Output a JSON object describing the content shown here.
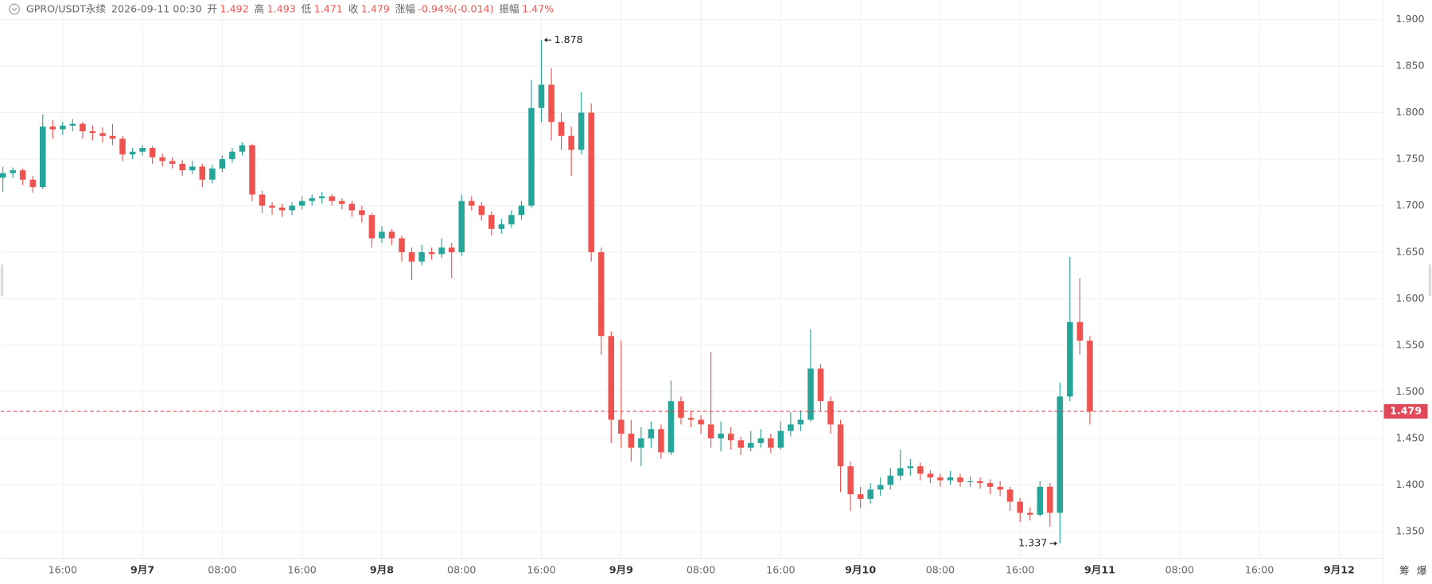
{
  "header": {
    "symbol": "GPRO/USDT永续",
    "time": "2026-09-11 00:30",
    "fields": [
      {
        "label": "开",
        "value": "1.492"
      },
      {
        "label": "高",
        "value": "1.493"
      },
      {
        "label": "低",
        "value": "1.471"
      },
      {
        "label": "收",
        "value": "1.479"
      },
      {
        "label": "涨幅",
        "value": "-0.94%(-0.014)"
      },
      {
        "label": "振幅",
        "value": "1.47%"
      }
    ]
  },
  "tools": [
    "筹",
    "爆"
  ],
  "chart_data": {
    "type": "candlestick",
    "up_color": "#26a69a",
    "down_color": "#ef5350",
    "last_price_color": "#e04a58",
    "grid": true,
    "xlim": [
      9.78,
      148.39
    ],
    "xticks": [
      {
        "value": 16,
        "label": "16:00"
      },
      {
        "value": 24,
        "label": "9月7"
      },
      {
        "value": 32,
        "label": "08:00"
      },
      {
        "value": 40,
        "label": "16:00"
      },
      {
        "value": 48,
        "label": "9月8"
      },
      {
        "value": 56,
        "label": "08:00"
      },
      {
        "value": 64,
        "label": "16:00"
      },
      {
        "value": 72,
        "label": "9月9"
      },
      {
        "value": 80,
        "label": "08:00"
      },
      {
        "value": 88,
        "label": "16:00"
      },
      {
        "value": 96,
        "label": "9月10"
      },
      {
        "value": 104,
        "label": "08:00"
      },
      {
        "value": 112,
        "label": "16:00"
      },
      {
        "value": 120,
        "label": "9月11"
      },
      {
        "value": 128,
        "label": "08:00"
      },
      {
        "value": 136,
        "label": "16:00"
      },
      {
        "value": 144,
        "label": "9月12"
      }
    ],
    "ylim": [
      1.321,
      1.921
    ],
    "yticks": [
      {
        "value": 1.9,
        "label": "1.900"
      },
      {
        "value": 1.85,
        "label": "1.850"
      },
      {
        "value": 1.8,
        "label": "1.800"
      },
      {
        "value": 1.75,
        "label": "1.750"
      },
      {
        "value": 1.7,
        "label": "1.700"
      },
      {
        "value": 1.65,
        "label": "1.650"
      },
      {
        "value": 1.6,
        "label": "1.600"
      },
      {
        "value": 1.55,
        "label": "1.550"
      },
      {
        "value": 1.5,
        "label": "1.500"
      },
      {
        "value": 1.45,
        "label": "1.450"
      },
      {
        "value": 1.4,
        "label": "1.400"
      },
      {
        "value": 1.35,
        "label": "1.350"
      }
    ],
    "last_price": 1.479,
    "annotations": [
      {
        "label": 1.878,
        "x": 64,
        "side": "right"
      },
      {
        "label": 1.337,
        "x": 116,
        "side": "left"
      }
    ],
    "x": [
      10,
      11,
      12,
      13,
      14,
      15,
      16,
      17,
      18,
      19,
      20,
      21,
      22,
      23,
      24,
      25,
      26,
      27,
      28,
      29,
      30,
      31,
      32,
      33,
      34,
      35,
      36,
      37,
      38,
      39,
      40,
      41,
      42,
      43,
      44,
      45,
      46,
      47,
      48,
      49,
      50,
      51,
      52,
      53,
      54,
      55,
      56,
      57,
      58,
      59,
      60,
      61,
      62,
      63,
      64,
      65,
      66,
      67,
      68,
      69,
      70,
      71,
      72,
      73,
      74,
      75,
      76,
      77,
      78,
      79,
      80,
      81,
      82,
      83,
      84,
      85,
      86,
      87,
      88,
      89,
      90,
      91,
      92,
      93,
      94,
      95,
      96,
      97,
      98,
      99,
      100,
      101,
      102,
      103,
      104,
      105,
      106,
      107,
      108,
      109,
      110,
      111,
      112,
      113,
      114,
      115,
      116,
      117,
      118,
      119
    ],
    "candles": [
      [
        1.73,
        1.742,
        1.715,
        1.735
      ],
      [
        1.735,
        1.741,
        1.73,
        1.738
      ],
      [
        1.738,
        1.74,
        1.722,
        1.728
      ],
      [
        1.728,
        1.732,
        1.714,
        1.72
      ],
      [
        1.72,
        1.798,
        1.718,
        1.785
      ],
      [
        1.785,
        1.792,
        1.772,
        1.782
      ],
      [
        1.782,
        1.79,
        1.776,
        1.786
      ],
      [
        1.786,
        1.793,
        1.78,
        1.788
      ],
      [
        1.788,
        1.79,
        1.772,
        1.78
      ],
      [
        1.78,
        1.786,
        1.77,
        1.778
      ],
      [
        1.778,
        1.784,
        1.768,
        1.775
      ],
      [
        1.775,
        1.788,
        1.765,
        1.772
      ],
      [
        1.772,
        1.775,
        1.748,
        1.755
      ],
      [
        1.755,
        1.762,
        1.75,
        1.758
      ],
      [
        1.758,
        1.765,
        1.754,
        1.762
      ],
      [
        1.762,
        1.764,
        1.745,
        1.752
      ],
      [
        1.752,
        1.756,
        1.742,
        1.748
      ],
      [
        1.748,
        1.752,
        1.74,
        1.745
      ],
      [
        1.745,
        1.749,
        1.732,
        1.738
      ],
      [
        1.738,
        1.748,
        1.734,
        1.742
      ],
      [
        1.742,
        1.745,
        1.72,
        1.728
      ],
      [
        1.728,
        1.744,
        1.724,
        1.74
      ],
      [
        1.74,
        1.754,
        1.736,
        1.75
      ],
      [
        1.75,
        1.762,
        1.746,
        1.758
      ],
      [
        1.758,
        1.768,
        1.754,
        1.765
      ],
      [
        1.765,
        1.766,
        1.705,
        1.712
      ],
      [
        1.712,
        1.716,
        1.692,
        1.7
      ],
      [
        1.7,
        1.704,
        1.69,
        1.698
      ],
      [
        1.698,
        1.702,
        1.688,
        1.695
      ],
      [
        1.695,
        1.704,
        1.69,
        1.7
      ],
      [
        1.7,
        1.71,
        1.696,
        1.705
      ],
      [
        1.705,
        1.712,
        1.7,
        1.708
      ],
      [
        1.708,
        1.715,
        1.702,
        1.71
      ],
      [
        1.71,
        1.712,
        1.7,
        1.705
      ],
      [
        1.705,
        1.708,
        1.696,
        1.702
      ],
      [
        1.702,
        1.705,
        1.688,
        1.695
      ],
      [
        1.695,
        1.7,
        1.682,
        1.69
      ],
      [
        1.69,
        1.692,
        1.655,
        1.665
      ],
      [
        1.665,
        1.678,
        1.66,
        1.672
      ],
      [
        1.672,
        1.675,
        1.658,
        1.665
      ],
      [
        1.665,
        1.668,
        1.64,
        1.65
      ],
      [
        1.65,
        1.655,
        1.62,
        1.64
      ],
      [
        1.64,
        1.658,
        1.636,
        1.65
      ],
      [
        1.65,
        1.655,
        1.642,
        1.648
      ],
      [
        1.648,
        1.665,
        1.644,
        1.655
      ],
      [
        1.655,
        1.66,
        1.622,
        1.65
      ],
      [
        1.65,
        1.712,
        1.646,
        1.705
      ],
      [
        1.705,
        1.71,
        1.695,
        1.7
      ],
      [
        1.7,
        1.704,
        1.684,
        1.69
      ],
      [
        1.69,
        1.694,
        1.668,
        1.675
      ],
      [
        1.675,
        1.686,
        1.67,
        1.68
      ],
      [
        1.68,
        1.695,
        1.676,
        1.69
      ],
      [
        1.69,
        1.705,
        1.685,
        1.7
      ],
      [
        1.7,
        1.835,
        1.698,
        1.805
      ],
      [
        1.805,
        1.878,
        1.79,
        1.83
      ],
      [
        1.83,
        1.848,
        1.77,
        1.79
      ],
      [
        1.79,
        1.8,
        1.76,
        1.775
      ],
      [
        1.775,
        1.785,
        1.732,
        1.76
      ],
      [
        1.76,
        1.822,
        1.755,
        1.8
      ],
      [
        1.8,
        1.81,
        1.64,
        1.65
      ],
      [
        1.65,
        1.655,
        1.54,
        1.56
      ],
      [
        1.56,
        1.565,
        1.445,
        1.47
      ],
      [
        1.47,
        1.555,
        1.44,
        1.455
      ],
      [
        1.455,
        1.47,
        1.425,
        1.44
      ],
      [
        1.44,
        1.462,
        1.42,
        1.45
      ],
      [
        1.45,
        1.468,
        1.44,
        1.46
      ],
      [
        1.46,
        1.465,
        1.428,
        1.435
      ],
      [
        1.435,
        1.512,
        1.432,
        1.49
      ],
      [
        1.49,
        1.495,
        1.465,
        1.472
      ],
      [
        1.472,
        1.48,
        1.462,
        1.47
      ],
      [
        1.47,
        1.475,
        1.455,
        1.465
      ],
      [
        1.465,
        1.543,
        1.44,
        1.45
      ],
      [
        1.45,
        1.468,
        1.436,
        1.455
      ],
      [
        1.455,
        1.462,
        1.438,
        1.448
      ],
      [
        1.448,
        1.452,
        1.432,
        1.44
      ],
      [
        1.44,
        1.458,
        1.436,
        1.445
      ],
      [
        1.445,
        1.46,
        1.44,
        1.45
      ],
      [
        1.45,
        1.455,
        1.434,
        1.44
      ],
      [
        1.44,
        1.468,
        1.438,
        1.458
      ],
      [
        1.458,
        1.478,
        1.452,
        1.465
      ],
      [
        1.465,
        1.48,
        1.458,
        1.47
      ],
      [
        1.47,
        1.567,
        1.468,
        1.525
      ],
      [
        1.525,
        1.53,
        1.48,
        1.49
      ],
      [
        1.49,
        1.495,
        1.455,
        1.465
      ],
      [
        1.465,
        1.47,
        1.392,
        1.42
      ],
      [
        1.42,
        1.425,
        1.372,
        1.39
      ],
      [
        1.39,
        1.398,
        1.375,
        1.385
      ],
      [
        1.385,
        1.402,
        1.38,
        1.395
      ],
      [
        1.395,
        1.408,
        1.388,
        1.4
      ],
      [
        1.4,
        1.418,
        1.395,
        1.41
      ],
      [
        1.41,
        1.438,
        1.405,
        1.418
      ],
      [
        1.418,
        1.428,
        1.41,
        1.42
      ],
      [
        1.42,
        1.424,
        1.405,
        1.412
      ],
      [
        1.412,
        1.416,
        1.402,
        1.408
      ],
      [
        1.408,
        1.412,
        1.398,
        1.405
      ],
      [
        1.405,
        1.415,
        1.4,
        1.408
      ],
      [
        1.408,
        1.412,
        1.398,
        1.403
      ],
      [
        1.403,
        1.409,
        1.398,
        1.404
      ],
      [
        1.404,
        1.408,
        1.396,
        1.402
      ],
      [
        1.402,
        1.406,
        1.39,
        1.398
      ],
      [
        1.398,
        1.404,
        1.388,
        1.395
      ],
      [
        1.395,
        1.398,
        1.372,
        1.382
      ],
      [
        1.382,
        1.386,
        1.36,
        1.37
      ],
      [
        1.37,
        1.376,
        1.362,
        1.368
      ],
      [
        1.368,
        1.404,
        1.366,
        1.398
      ],
      [
        1.398,
        1.402,
        1.355,
        1.37
      ],
      [
        1.37,
        1.51,
        1.337,
        1.495
      ],
      [
        1.495,
        1.645,
        1.49,
        1.575
      ],
      [
        1.575,
        1.622,
        1.54,
        1.555
      ],
      [
        1.555,
        1.56,
        1.465,
        1.479
      ]
    ]
  }
}
